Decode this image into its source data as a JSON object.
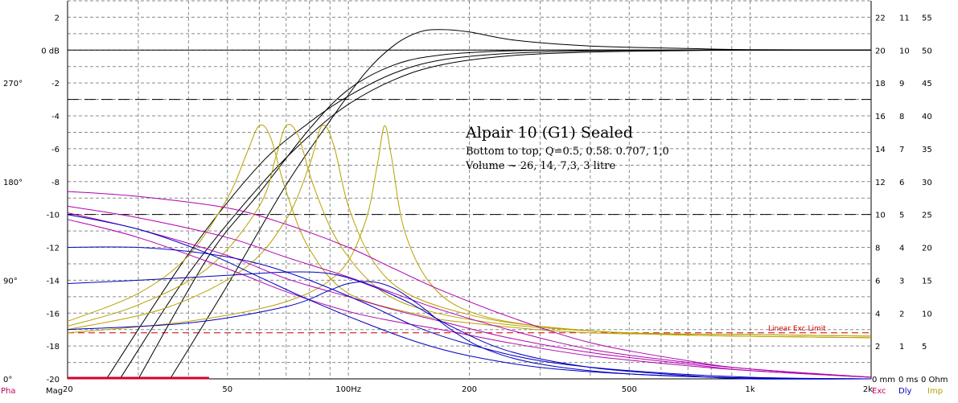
{
  "chart_data": {
    "type": "line",
    "xscale": "log",
    "xlim": [
      20,
      2000
    ],
    "ylim": [
      -20,
      3
    ],
    "x_ticks": [
      {
        "v": 20,
        "label": "20"
      },
      {
        "v": 50,
        "label": "50"
      },
      {
        "v": 100,
        "label": "100Hz"
      },
      {
        "v": 200,
        "label": "200"
      },
      {
        "v": 500,
        "label": "500"
      },
      {
        "v": 1000,
        "label": "1k"
      },
      {
        "v": 2000,
        "label": "2k"
      }
    ],
    "y_ticks_db": [
      {
        "v": 2,
        "label": "2"
      },
      {
        "v": 0,
        "label": "0 dB"
      },
      {
        "v": -2,
        "label": "-2"
      },
      {
        "v": -4,
        "label": "-4"
      },
      {
        "v": -6,
        "label": "-6"
      },
      {
        "v": -8,
        "label": "-8"
      },
      {
        "v": -10,
        "label": "-10"
      },
      {
        "v": -12,
        "label": "-12"
      },
      {
        "v": -14,
        "label": "-14"
      },
      {
        "v": -16,
        "label": "-16"
      },
      {
        "v": -18,
        "label": "-18"
      },
      {
        "v": -20,
        "label": "-20"
      }
    ],
    "y_ticks_phase": [
      {
        "v": -2,
        "label": "270°"
      },
      {
        "v": -8,
        "label": "180°"
      },
      {
        "v": -14,
        "label": "90°"
      },
      {
        "v": -20,
        "label": "0°"
      }
    ],
    "right_axes": [
      {
        "name": "mm",
        "color": "#000000",
        "ticks": [
          {
            "v": 2,
            "label": "22"
          },
          {
            "v": 0,
            "label": "20"
          },
          {
            "v": -2,
            "label": "18"
          },
          {
            "v": -4,
            "label": "16"
          },
          {
            "v": -6,
            "label": "14"
          },
          {
            "v": -8,
            "label": "12"
          },
          {
            "v": -10,
            "label": "10"
          },
          {
            "v": -12,
            "label": "8"
          },
          {
            "v": -14,
            "label": "6"
          },
          {
            "v": -16,
            "label": "4"
          },
          {
            "v": -18,
            "label": "2"
          }
        ]
      },
      {
        "name": "ms",
        "color": "#000000",
        "ticks": [
          {
            "v": 2,
            "label": "11"
          },
          {
            "v": 0,
            "label": "10"
          },
          {
            "v": -2,
            "label": "9"
          },
          {
            "v": -4,
            "label": "8"
          },
          {
            "v": -6,
            "label": "7"
          },
          {
            "v": -8,
            "label": "6"
          },
          {
            "v": -10,
            "label": "5"
          },
          {
            "v": -12,
            "label": "4"
          },
          {
            "v": -14,
            "label": "3"
          },
          {
            "v": -16,
            "label": "2"
          },
          {
            "v": -18,
            "label": "1"
          }
        ]
      },
      {
        "name": "Ohm",
        "color": "#000000",
        "ticks": [
          {
            "v": 2,
            "label": "55"
          },
          {
            "v": 0,
            "label": "50"
          },
          {
            "v": -2,
            "label": "45"
          },
          {
            "v": -4,
            "label": "40"
          },
          {
            "v": -6,
            "label": "35"
          },
          {
            "v": -8,
            "label": "30"
          },
          {
            "v": -10,
            "label": "25"
          },
          {
            "v": -12,
            "label": "20"
          },
          {
            "v": -14,
            "label": "15"
          },
          {
            "v": -16,
            "label": "10"
          },
          {
            "v": -18,
            "label": "5"
          }
        ]
      }
    ],
    "bottom_right_labels": [
      "0 mm",
      "0 ms",
      "0 Ohm"
    ],
    "corner_labels": [
      {
        "text": "Pha",
        "color": "#c00060"
      },
      {
        "text": "Mag",
        "color": "#000000"
      },
      {
        "text": "Exc",
        "color": "#c00060"
      },
      {
        "text": "Dly",
        "color": "#0000c0"
      },
      {
        "text": "Imp",
        "color": "#b8a000"
      }
    ],
    "reference_lines": [
      {
        "y": -3,
        "style": "dashed",
        "color": "#000000"
      },
      {
        "y": -10,
        "style": "dashed",
        "color": "#000000"
      },
      {
        "y": -17.2,
        "style": "dashed",
        "color": "#cc0000",
        "label": "Linear Exc Limit"
      }
    ],
    "annotation": {
      "title": "Alpair 10 (G1) Sealed",
      "lines": [
        "Bottom to top, Q=0.5, 0.58. 0.707, 1,0",
        "Volume ~ 26, 14, 7,3, 3 litre"
      ]
    },
    "series": [
      {
        "group": "magnitude",
        "color": "#000000",
        "points": [
          [
            27,
            -20
          ],
          [
            40,
            -13.6
          ],
          [
            60,
            -8.3
          ],
          [
            80,
            -5.2
          ],
          [
            100,
            -3.3
          ],
          [
            130,
            -1.8
          ],
          [
            170,
            -0.9
          ],
          [
            250,
            -0.35
          ],
          [
            400,
            -0.12
          ],
          [
            700,
            -0.03
          ],
          [
            1000,
            0
          ],
          [
            2000,
            0
          ]
        ]
      },
      {
        "group": "magnitude",
        "color": "#000000",
        "points": [
          [
            25,
            -20
          ],
          [
            40,
            -12.4
          ],
          [
            60,
            -7.0
          ],
          [
            80,
            -4.4
          ],
          [
            100,
            -2.8
          ],
          [
            130,
            -1.4
          ],
          [
            170,
            -0.6
          ],
          [
            250,
            -0.2
          ],
          [
            400,
            -0.05
          ],
          [
            700,
            0
          ],
          [
            1000,
            0
          ],
          [
            2000,
            0
          ]
        ]
      },
      {
        "group": "magnitude",
        "color": "#000000",
        "points": [
          [
            30,
            -20
          ],
          [
            45,
            -12.5
          ],
          [
            60,
            -8.7
          ],
          [
            80,
            -4.8
          ],
          [
            100,
            -2.4
          ],
          [
            130,
            -0.9
          ],
          [
            170,
            -0.3
          ],
          [
            250,
            -0.05
          ],
          [
            400,
            0
          ],
          [
            700,
            0
          ],
          [
            1000,
            0
          ],
          [
            2000,
            0
          ]
        ]
      },
      {
        "group": "magnitude",
        "color": "#000000",
        "points": [
          [
            36,
            -20
          ],
          [
            50,
            -14.3
          ],
          [
            70,
            -8.2
          ],
          [
            90,
            -4.3
          ],
          [
            110,
            -1.4
          ],
          [
            130,
            0.3
          ],
          [
            150,
            1.1
          ],
          [
            170,
            1.25
          ],
          [
            200,
            1.1
          ],
          [
            260,
            0.6
          ],
          [
            400,
            0.25
          ],
          [
            700,
            0.1
          ],
          [
            1000,
            0.03
          ],
          [
            2000,
            0
          ]
        ]
      },
      {
        "group": "impedance",
        "color": "#b8a000",
        "points": [
          [
            20,
            -16.5
          ],
          [
            30,
            -14.8
          ],
          [
            40,
            -12.5
          ],
          [
            50,
            -9
          ],
          [
            56,
            -6.2
          ],
          [
            60,
            -4.6
          ],
          [
            64,
            -5.3
          ],
          [
            70,
            -8.6
          ],
          [
            80,
            -12.1
          ],
          [
            100,
            -14.8
          ],
          [
            150,
            -16.1
          ],
          [
            200,
            -16.6
          ],
          [
            400,
            -17.2
          ],
          [
            1000,
            -17.3
          ],
          [
            2000,
            -17.4
          ]
        ]
      },
      {
        "group": "impedance",
        "color": "#b8a000",
        "points": [
          [
            20,
            -16.8
          ],
          [
            30,
            -15.5
          ],
          [
            45,
            -13.2
          ],
          [
            60,
            -9.5
          ],
          [
            66,
            -6.5
          ],
          [
            70,
            -4.6
          ],
          [
            75,
            -5.2
          ],
          [
            82,
            -8.3
          ],
          [
            95,
            -11.8
          ],
          [
            120,
            -14.6
          ],
          [
            160,
            -15.9
          ],
          [
            250,
            -16.7
          ],
          [
            500,
            -17.2
          ],
          [
            1000,
            -17.3
          ],
          [
            2000,
            -17.4
          ]
        ]
      },
      {
        "group": "impedance",
        "color": "#b8a000",
        "points": [
          [
            20,
            -17
          ],
          [
            35,
            -15.7
          ],
          [
            55,
            -13.3
          ],
          [
            70,
            -10.3
          ],
          [
            80,
            -7
          ],
          [
            86,
            -4.6
          ],
          [
            92,
            -5.8
          ],
          [
            100,
            -9.5
          ],
          [
            115,
            -12.8
          ],
          [
            140,
            -14.8
          ],
          [
            200,
            -16.1
          ],
          [
            300,
            -16.8
          ],
          [
            600,
            -17.3
          ],
          [
            2000,
            -17.5
          ]
        ]
      },
      {
        "group": "impedance",
        "color": "#b8a000",
        "points": [
          [
            20,
            -17.2
          ],
          [
            40,
            -16.5
          ],
          [
            70,
            -15.3
          ],
          [
            95,
            -13.5
          ],
          [
            110,
            -10.5
          ],
          [
            118,
            -7
          ],
          [
            123,
            -4.6
          ],
          [
            128,
            -6.5
          ],
          [
            138,
            -11
          ],
          [
            160,
            -14.2
          ],
          [
            200,
            -15.9
          ],
          [
            300,
            -16.8
          ],
          [
            600,
            -17.3
          ],
          [
            2000,
            -17.5
          ]
        ]
      },
      {
        "group": "phase",
        "color": "#b000b0",
        "points": [
          [
            20,
            -8.6
          ],
          [
            30,
            -8.9
          ],
          [
            50,
            -9.6
          ],
          [
            70,
            -10.6
          ],
          [
            100,
            -12
          ],
          [
            130,
            -13.3
          ],
          [
            170,
            -14.6
          ],
          [
            250,
            -16.2
          ],
          [
            400,
            -17.8
          ],
          [
            700,
            -18.9
          ],
          [
            1000,
            -19.4
          ],
          [
            2000,
            -19.9
          ]
        ]
      },
      {
        "group": "phase",
        "color": "#b000b0",
        "points": [
          [
            20,
            -9.5
          ],
          [
            30,
            -10.2
          ],
          [
            50,
            -11.4
          ],
          [
            70,
            -12.6
          ],
          [
            100,
            -13.8
          ],
          [
            130,
            -14.8
          ],
          [
            170,
            -15.8
          ],
          [
            250,
            -17
          ],
          [
            400,
            -18.2
          ],
          [
            700,
            -19
          ],
          [
            1000,
            -19.4
          ],
          [
            2000,
            -19.9
          ]
        ]
      },
      {
        "group": "phase",
        "color": "#b000b0",
        "points": [
          [
            20,
            -9.9
          ],
          [
            30,
            -10.9
          ],
          [
            50,
            -12.5
          ],
          [
            70,
            -13.9
          ],
          [
            100,
            -15
          ],
          [
            130,
            -15.8
          ],
          [
            170,
            -16.5
          ],
          [
            250,
            -17.5
          ],
          [
            400,
            -18.4
          ],
          [
            700,
            -19.1
          ],
          [
            1000,
            -19.5
          ],
          [
            2000,
            -19.9
          ]
        ]
      },
      {
        "group": "phase",
        "color": "#b000b0",
        "points": [
          [
            20,
            -10.3
          ],
          [
            30,
            -11.4
          ],
          [
            50,
            -13.3
          ],
          [
            70,
            -14.7
          ],
          [
            100,
            -15.9
          ],
          [
            130,
            -16.5
          ],
          [
            170,
            -17
          ],
          [
            250,
            -17.8
          ],
          [
            400,
            -18.6
          ],
          [
            700,
            -19.2
          ],
          [
            1000,
            -19.5
          ],
          [
            2000,
            -19.9
          ]
        ]
      },
      {
        "group": "delay",
        "color": "#0000c0",
        "points": [
          [
            20,
            -14.2
          ],
          [
            30,
            -14
          ],
          [
            50,
            -13.7
          ],
          [
            70,
            -13.5
          ],
          [
            90,
            -13.6
          ],
          [
            110,
            -14.2
          ],
          [
            140,
            -15.3
          ],
          [
            180,
            -16.8
          ],
          [
            250,
            -18.3
          ],
          [
            400,
            -19.3
          ],
          [
            700,
            -19.8
          ],
          [
            1000,
            -20
          ],
          [
            2000,
            -20
          ]
        ]
      },
      {
        "group": "delay",
        "color": "#0000c0",
        "points": [
          [
            20,
            -12
          ],
          [
            30,
            -12
          ],
          [
            45,
            -12.4
          ],
          [
            60,
            -13
          ],
          [
            80,
            -14
          ],
          [
            110,
            -15.4
          ],
          [
            150,
            -16.9
          ],
          [
            200,
            -17.9
          ],
          [
            300,
            -18.9
          ],
          [
            500,
            -19.5
          ],
          [
            1000,
            -19.9
          ],
          [
            2000,
            -20
          ]
        ]
      },
      {
        "group": "delay",
        "color": "#0000c0",
        "points": [
          [
            20,
            -10
          ],
          [
            30,
            -10.9
          ],
          [
            45,
            -12.4
          ],
          [
            60,
            -13.8
          ],
          [
            80,
            -15.2
          ],
          [
            110,
            -16.6
          ],
          [
            150,
            -17.8
          ],
          [
            200,
            -18.6
          ],
          [
            300,
            -19.3
          ],
          [
            500,
            -19.7
          ],
          [
            1000,
            -19.95
          ],
          [
            2000,
            -20
          ]
        ]
      },
      {
        "group": "delay",
        "color": "#0000c0",
        "points": [
          [
            20,
            -17
          ],
          [
            40,
            -16.6
          ],
          [
            70,
            -15.6
          ],
          [
            90,
            -14.6
          ],
          [
            100,
            -14.2
          ],
          [
            115,
            -14.1
          ],
          [
            130,
            -14.5
          ],
          [
            150,
            -15.5
          ],
          [
            180,
            -17
          ],
          [
            220,
            -18.2
          ],
          [
            300,
            -19.1
          ],
          [
            500,
            -19.7
          ],
          [
            1000,
            -19.95
          ],
          [
            2000,
            -20
          ]
        ]
      }
    ]
  }
}
